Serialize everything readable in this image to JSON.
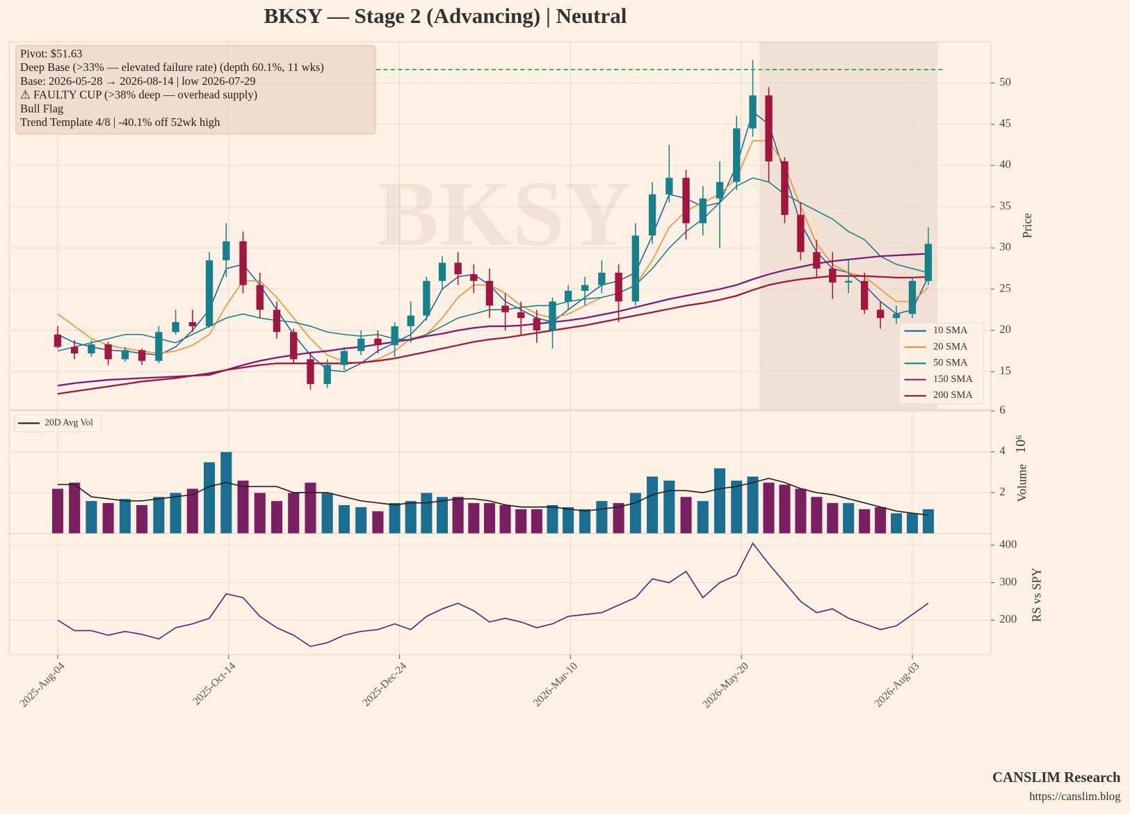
{
  "chart_data": {
    "type": "candlestick",
    "title": "BKSY  —  Stage 2 (Advancing)  |  Neutral",
    "watermark": "BKSY",
    "x": [
      "2025-08-04",
      "2025-08-11",
      "2025-08-18",
      "2025-08-25",
      "2025-09-01",
      "2025-09-08",
      "2025-09-15",
      "2025-09-22",
      "2025-09-29",
      "2025-10-06",
      "2025-10-13",
      "2025-10-20",
      "2025-10-27",
      "2025-11-03",
      "2025-11-10",
      "2025-11-17",
      "2025-11-24",
      "2025-12-01",
      "2025-12-08",
      "2025-12-15",
      "2025-12-22",
      "2025-12-29",
      "2026-01-05",
      "2026-01-12",
      "2026-01-19",
      "2026-01-26",
      "2026-02-02",
      "2026-02-09",
      "2026-02-16",
      "2026-02-23",
      "2026-03-02",
      "2026-03-09",
      "2026-03-16",
      "2026-03-23",
      "2026-03-30",
      "2026-04-06",
      "2026-04-13",
      "2026-04-20",
      "2026-04-27",
      "2026-05-04",
      "2026-05-11",
      "2026-05-18",
      "2026-05-25",
      "2026-06-01",
      "2026-06-08",
      "2026-06-15",
      "2026-06-22",
      "2026-06-29",
      "2026-07-06",
      "2026-07-13",
      "2026-07-20",
      "2026-07-27",
      "2026-08-03",
      "2026-08-10"
    ],
    "xticks": [
      {
        "value": "2025-08-04",
        "label": "2025-Aug-04"
      },
      {
        "value": "2025-10-14",
        "label": "2025-Oct-14"
      },
      {
        "value": "2025-12-24",
        "label": "2025-Dec-24"
      },
      {
        "value": "2026-03-10",
        "label": "2026-Mar-10"
      },
      {
        "value": "2026-05-20",
        "label": "2026-May-20"
      },
      {
        "value": "2026-08-03",
        "label": "2026-Aug-03"
      }
    ],
    "open": [
      19.5,
      18.0,
      17.2,
      18.3,
      16.5,
      17.6,
      16.3,
      19.8,
      21.0,
      20.5,
      28.5,
      30.8,
      25.5,
      22.5,
      19.8,
      16.5,
      13.5,
      15.8,
      17.5,
      19.0,
      18.2,
      20.5,
      21.8,
      26.0,
      28.2,
      26.8,
      26.0,
      23.0,
      22.2,
      21.5,
      20.0,
      23.5,
      24.8,
      25.5,
      27.0,
      23.5,
      31.5,
      36.5,
      38.5,
      33.0,
      36.0,
      38.0,
      44.5,
      48.5,
      40.5,
      34.0,
      29.5,
      27.5,
      25.8,
      26.0,
      22.5,
      21.5,
      22.0,
      26.0
    ],
    "high": [
      20.5,
      18.8,
      18.8,
      18.6,
      18.0,
      17.8,
      20.5,
      22.5,
      22.5,
      29.5,
      33.0,
      32.0,
      27.0,
      23.5,
      20.2,
      17.2,
      16.5,
      18.0,
      20.0,
      20.0,
      21.0,
      23.5,
      26.5,
      29.0,
      29.5,
      28.0,
      27.5,
      24.5,
      23.5,
      22.5,
      24.0,
      25.5,
      26.5,
      28.5,
      28.0,
      33.0,
      38.0,
      42.5,
      39.5,
      37.5,
      40.5,
      46.0,
      52.8,
      49.5,
      41.0,
      35.5,
      31.0,
      29.5,
      28.5,
      27.0,
      23.5,
      23.0,
      26.5,
      32.5
    ],
    "low": [
      17.8,
      16.5,
      16.8,
      15.8,
      16.2,
      15.8,
      16.0,
      19.5,
      19.8,
      20.3,
      26.5,
      24.5,
      21.5,
      19.0,
      16.0,
      12.8,
      13.0,
      15.2,
      17.0,
      17.2,
      16.8,
      18.5,
      21.2,
      25.0,
      25.5,
      24.5,
      21.5,
      20.0,
      19.5,
      18.5,
      17.8,
      22.5,
      23.0,
      24.5,
      21.0,
      23.0,
      30.5,
      35.5,
      31.0,
      31.5,
      30.0,
      37.0,
      43.5,
      38.0,
      33.0,
      28.5,
      26.5,
      23.8,
      24.5,
      22.0,
      20.2,
      20.8,
      21.5,
      25.5
    ],
    "close": [
      18.0,
      17.2,
      18.3,
      16.5,
      17.6,
      16.3,
      19.8,
      21.0,
      20.5,
      28.5,
      30.8,
      25.5,
      22.5,
      19.8,
      16.5,
      13.5,
      15.8,
      17.5,
      19.0,
      18.2,
      20.5,
      21.8,
      26.0,
      28.2,
      26.8,
      26.0,
      23.0,
      22.2,
      21.5,
      20.0,
      23.5,
      24.8,
      25.5,
      27.0,
      23.5,
      31.5,
      36.5,
      38.5,
      33.0,
      36.0,
      38.0,
      44.5,
      48.5,
      40.5,
      34.0,
      29.5,
      27.5,
      25.8,
      26.0,
      22.5,
      21.5,
      22.0,
      26.0,
      30.5
    ],
    "up_color": "#17808a",
    "down_color": "#a0163f",
    "ylabel": "Price",
    "ylim": [
      10.4,
      55
    ],
    "yticks": [
      15,
      20,
      25,
      30,
      35,
      40,
      45,
      50
    ],
    "grid": true,
    "series": [
      {
        "name": "10 SMA",
        "color": "#1f5f9a",
        "values": [
          19.5,
          18.5,
          18.0,
          17.6,
          17.5,
          17.2,
          17.0,
          18.0,
          20.0,
          22.5,
          27.5,
          28.0,
          25.5,
          22.5,
          19.5,
          17.0,
          15.2,
          15.0,
          16.0,
          17.5,
          18.5,
          19.5,
          21.5,
          25.0,
          26.5,
          26.8,
          25.5,
          23.5,
          22.5,
          21.5,
          21.0,
          22.5,
          24.0,
          25.5,
          26.0,
          27.0,
          31.5,
          36.5,
          36.0,
          35.0,
          35.5,
          40.0,
          46.5,
          45.0,
          39.0,
          33.0,
          29.5,
          27.5,
          27.0,
          25.5,
          23.5,
          22.0,
          22.5,
          26.5
        ]
      },
      {
        "name": "20 SMA",
        "color": "#f28e2b",
        "values": [
          22.0,
          20.5,
          19.0,
          18.2,
          17.8,
          17.5,
          17.2,
          17.5,
          18.2,
          19.5,
          23.0,
          26.0,
          26.0,
          24.0,
          21.5,
          19.0,
          17.0,
          16.2,
          16.0,
          16.5,
          17.5,
          19.0,
          19.5,
          21.5,
          24.0,
          25.5,
          25.5,
          24.5,
          23.0,
          22.0,
          21.5,
          22.0,
          23.0,
          24.0,
          24.5,
          25.5,
          28.5,
          32.5,
          34.5,
          35.5,
          36.5,
          38.5,
          43.0,
          43.0,
          40.0,
          35.0,
          30.5,
          28.0,
          27.0,
          26.5,
          25.0,
          23.5,
          23.5,
          25.2
        ]
      },
      {
        "name": "50 SMA",
        "color": "#177e89",
        "values": [
          17.5,
          18.0,
          18.5,
          19.0,
          19.5,
          19.5,
          19.0,
          18.5,
          19.5,
          20.5,
          21.5,
          22.0,
          21.5,
          21.2,
          21.0,
          20.5,
          19.8,
          19.5,
          19.3,
          19.5,
          19.0,
          18.8,
          19.5,
          20.5,
          21.5,
          22.0,
          22.5,
          22.5,
          22.8,
          23.0,
          23.0,
          23.5,
          23.8,
          24.0,
          24.5,
          25.5,
          27.5,
          30.0,
          32.0,
          33.5,
          35.5,
          37.5,
          38.5,
          38.0,
          36.5,
          35.5,
          34.5,
          33.5,
          32.0,
          31.0,
          29.0,
          28.0,
          27.5,
          27.0
        ]
      },
      {
        "name": "150 SMA",
        "color": "#7b1a7b",
        "values": [
          13.3,
          13.6,
          13.8,
          14.0,
          14.1,
          14.2,
          14.3,
          14.4,
          14.5,
          14.6,
          15.2,
          15.8,
          16.3,
          16.7,
          17.0,
          17.3,
          17.5,
          17.8,
          18.0,
          18.3,
          18.6,
          18.9,
          19.3,
          19.6,
          20.0,
          20.3,
          20.5,
          20.5,
          20.6,
          20.8,
          21.0,
          21.2,
          21.5,
          21.9,
          22.3,
          22.8,
          23.3,
          23.8,
          24.2,
          24.6,
          25.0,
          25.5,
          26.2,
          26.8,
          27.3,
          27.7,
          28.1,
          28.4,
          28.6,
          28.8,
          29.0,
          29.1,
          29.2,
          29.3
        ]
      },
      {
        "name": "200 SMA",
        "color": "#a0163f",
        "values": [
          12.3,
          12.6,
          12.9,
          13.2,
          13.5,
          13.8,
          14.0,
          14.2,
          14.5,
          14.8,
          15.2,
          15.5,
          15.8,
          16.0,
          16.0,
          16.0,
          16.0,
          16.0,
          16.1,
          16.3,
          16.6,
          17.0,
          17.4,
          17.8,
          18.2,
          18.6,
          18.9,
          19.1,
          19.4,
          19.7,
          20.0,
          20.3,
          20.6,
          21.0,
          21.4,
          21.8,
          22.2,
          22.6,
          23.0,
          23.3,
          23.7,
          24.2,
          24.9,
          25.5,
          25.9,
          26.2,
          26.4,
          26.6,
          26.6,
          26.6,
          26.5,
          26.4,
          26.4,
          26.5
        ]
      }
    ],
    "legend": "lower right",
    "pivot": 51.63,
    "pivot_color": "#1a9a50",
    "shade": [
      "2026-05-28",
      "2026-08-14"
    ],
    "annotation": [
      "Pivot: $51.63",
      "Deep Base (>33% — elevated failure rate)  (depth 60.1%, 11 wks)",
      "Base: 2026-05-28 → 2026-08-14  |  low 2026-07-29",
      "⚠ FAULTY CUP (>38% deep — overhead supply)",
      "Bull Flag",
      "Trend Template 4/8  |  -40.1% off 52wk high"
    ],
    "volume": {
      "ylabel": "Volume",
      "scale_label": "10⁶",
      "ylim": [
        0,
        6
      ],
      "yticks": [
        2,
        4,
        6
      ],
      "up_color": "#1a6e90",
      "down_color": "#7a2060",
      "values": [
        2.2,
        2.5,
        1.6,
        1.5,
        1.7,
        1.4,
        1.8,
        2.0,
        2.2,
        3.5,
        4.0,
        2.6,
        2.0,
        1.6,
        2.0,
        2.5,
        2.0,
        1.4,
        1.3,
        1.1,
        1.5,
        1.6,
        2.0,
        1.8,
        1.8,
        1.5,
        1.5,
        1.4,
        1.2,
        1.2,
        1.4,
        1.3,
        1.2,
        1.6,
        1.5,
        2.0,
        2.8,
        2.6,
        1.8,
        1.6,
        3.2,
        2.6,
        2.8,
        2.5,
        2.4,
        2.2,
        1.8,
        1.5,
        1.5,
        1.2,
        1.3,
        1.0,
        1.0,
        1.2
      ],
      "series": [
        {
          "name": "20D Avg Vol",
          "color": "#222222",
          "values": [
            2.4,
            2.4,
            1.8,
            1.7,
            1.6,
            1.6,
            1.7,
            1.8,
            1.9,
            2.3,
            2.5,
            2.3,
            2.3,
            2.3,
            2.0,
            2.0,
            2.0,
            1.8,
            1.6,
            1.5,
            1.4,
            1.5,
            1.5,
            1.6,
            1.7,
            1.7,
            1.6,
            1.4,
            1.3,
            1.3,
            1.3,
            1.2,
            1.1,
            1.2,
            1.3,
            1.5,
            1.9,
            2.1,
            2.1,
            2.0,
            2.2,
            2.3,
            2.5,
            2.7,
            2.5,
            2.2,
            2.0,
            1.9,
            1.7,
            1.5,
            1.3,
            1.1,
            1.0,
            0.9
          ]
        }
      ],
      "legend": "upper left"
    },
    "rs": {
      "ylabel": "RS vs SPY",
      "ylim": [
        108,
        431
      ],
      "yticks": [
        200,
        300,
        400
      ],
      "color": "#4b2d7f",
      "values": [
        200,
        172,
        172,
        160,
        170,
        162,
        150,
        180,
        190,
        205,
        270,
        260,
        210,
        180,
        160,
        130,
        140,
        160,
        170,
        175,
        190,
        175,
        210,
        230,
        245,
        225,
        195,
        205,
        195,
        180,
        190,
        210,
        215,
        220,
        240,
        260,
        310,
        300,
        330,
        260,
        300,
        320,
        405,
        350,
        300,
        250,
        220,
        230,
        205,
        190,
        175,
        185,
        215,
        245
      ]
    }
  },
  "footer": {
    "brand": "CANSLIM Research",
    "url": "https://canslim.blog"
  }
}
